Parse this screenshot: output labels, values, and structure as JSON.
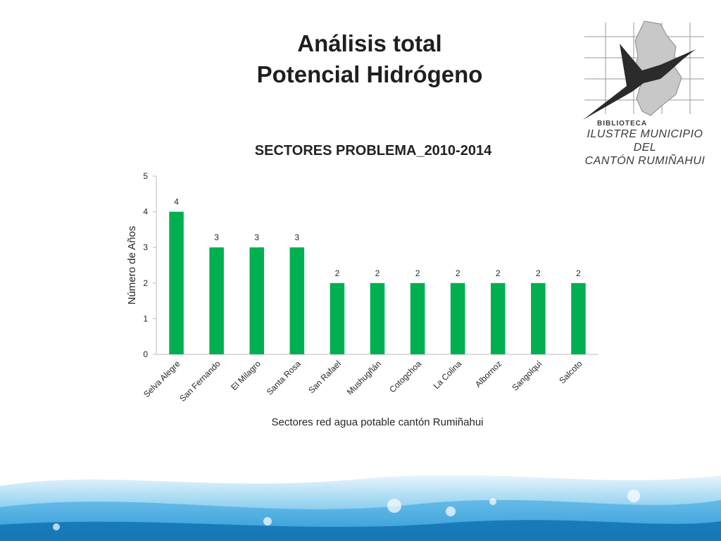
{
  "slide": {
    "title_line1": "Análisis total",
    "title_line2": "Potencial Hidrógeno"
  },
  "logo": {
    "line1": "BIBLIOTECA",
    "line2": "ILUSTRE MUNICIPIO DEL",
    "line3": "CANTÓN RUMIÑAHUI"
  },
  "colors": {
    "bar": "#00b050",
    "axis": "#bfbfbf",
    "text": "#262626"
  },
  "chart_data": {
    "type": "bar",
    "title": "SECTORES PROBLEMA_2010-2014",
    "xlabel": "Sectores red agua potable cantón Rumiñahui",
    "ylabel": "Número de Años",
    "ylim": [
      0,
      5
    ],
    "yticks": [
      0,
      1,
      2,
      3,
      4,
      5
    ],
    "grid": false,
    "categories": [
      "Selva Alegre",
      "San Fernando",
      "El Milagro",
      "Santa Rosa",
      "San Rafael",
      "Mushugñán",
      "Cotogchoa",
      "La Colina",
      "Albornoz",
      "Sangolquí",
      "Salcoto"
    ],
    "values": [
      4,
      3,
      3,
      3,
      2,
      2,
      2,
      2,
      2,
      2,
      2
    ],
    "data_labels": true
  }
}
